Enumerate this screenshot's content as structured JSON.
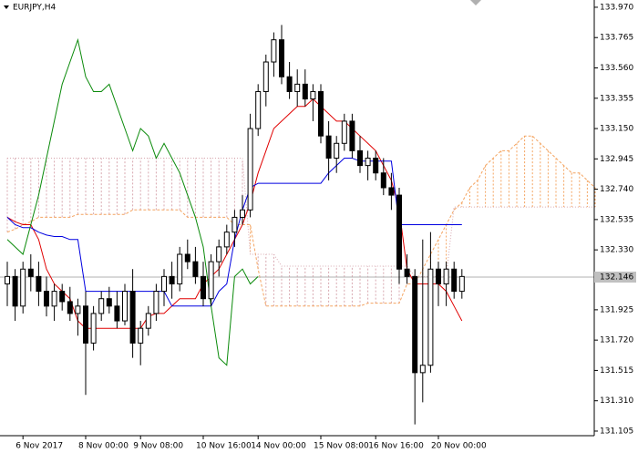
{
  "chart_data": {
    "type": "candlestick",
    "title": "EURJPY,H4",
    "categories": [
      null,
      null,
      "6 Nov 2017",
      null,
      null,
      null,
      null,
      null,
      null,
      null,
      "8 Nov 00:00",
      null,
      null,
      null,
      null,
      null,
      null,
      "9 Nov 08:00",
      null,
      null,
      null,
      null,
      null,
      null,
      null,
      "10 Nov 16:00",
      null,
      null,
      null,
      null,
      null,
      null,
      "14 Nov 00:00",
      null,
      null,
      null,
      null,
      null,
      null,
      null,
      "15 Nov 08:00",
      null,
      null,
      null,
      null,
      null,
      null,
      "16 Nov 16:00",
      null,
      null,
      null,
      null,
      null,
      null,
      null,
      "20 Nov 00:00",
      null,
      null,
      null,
      null,
      null,
      null,
      null,
      null,
      null,
      null,
      null,
      null,
      null,
      null,
      null,
      null,
      null,
      null,
      null,
      null
    ],
    "open": [
      132.1,
      132.15,
      131.95,
      132.2,
      132.15,
      132.05,
      131.95,
      132.05,
      131.98,
      131.9,
      131.95,
      131.7,
      131.9,
      132.0,
      131.95,
      131.85,
      132.05,
      131.7,
      131.8,
      131.9,
      132.05,
      132.15,
      132.1,
      132.3,
      132.25,
      132.15,
      132.0,
      132.25,
      132.35,
      132.45,
      132.55,
      132.6,
      133.15,
      133.4,
      133.6,
      133.75,
      133.5,
      133.4,
      133.45,
      133.35,
      133.4,
      133.1,
      132.95,
      133.05,
      133.2,
      133.0,
      132.9,
      132.95,
      132.85,
      132.75,
      132.7,
      132.2,
      132.15,
      131.5,
      131.55,
      132.2,
      132.1,
      132.2,
      132.05,
      null,
      null,
      null,
      null,
      null,
      null,
      null,
      null,
      null,
      null,
      null,
      null,
      null,
      null,
      null,
      null,
      null
    ],
    "high": [
      132.25,
      132.2,
      132.25,
      132.3,
      132.25,
      132.15,
      132.1,
      132.1,
      132.08,
      132.0,
      132.05,
      131.95,
      132.05,
      132.08,
      132.05,
      132.1,
      132.2,
      131.85,
      131.95,
      132.1,
      132.2,
      132.25,
      132.35,
      132.4,
      132.35,
      132.25,
      132.3,
      132.4,
      132.5,
      132.6,
      132.7,
      133.25,
      133.45,
      133.65,
      133.8,
      133.85,
      133.6,
      133.55,
      133.55,
      133.45,
      133.45,
      133.2,
      133.1,
      133.25,
      133.25,
      133.1,
      133.0,
      133.0,
      132.95,
      132.85,
      132.75,
      132.3,
      132.2,
      132.4,
      132.45,
      132.25,
      132.25,
      132.25,
      132.2,
      null,
      null,
      null,
      null,
      null,
      null,
      null,
      null,
      null,
      null,
      null,
      null,
      null,
      null,
      null,
      null,
      null
    ],
    "low": [
      131.95,
      131.85,
      131.9,
      132.05,
      131.95,
      131.88,
      131.85,
      131.92,
      131.85,
      131.75,
      131.35,
      131.65,
      131.85,
      131.9,
      131.8,
      131.82,
      131.6,
      131.55,
      131.75,
      131.85,
      131.95,
      132.0,
      132.05,
      132.2,
      132.1,
      131.95,
      131.95,
      132.15,
      132.3,
      132.35,
      132.5,
      132.55,
      133.1,
      133.3,
      133.5,
      133.45,
      133.35,
      133.3,
      133.3,
      133.2,
      133.05,
      132.8,
      132.85,
      133.0,
      132.95,
      132.85,
      132.8,
      132.8,
      132.7,
      132.6,
      132.1,
      132.1,
      131.15,
      131.3,
      131.5,
      131.95,
      131.95,
      132.0,
      132.0,
      null,
      null,
      null,
      null,
      null,
      null,
      null,
      null,
      null,
      null,
      null,
      null,
      null,
      null,
      null,
      null,
      null
    ],
    "close": [
      132.15,
      131.95,
      132.2,
      132.15,
      132.05,
      131.95,
      132.05,
      131.98,
      131.9,
      131.95,
      131.7,
      131.9,
      132.0,
      131.95,
      131.85,
      132.05,
      131.7,
      131.8,
      131.9,
      132.05,
      132.15,
      132.1,
      132.3,
      132.25,
      132.15,
      132.0,
      132.25,
      132.35,
      132.45,
      132.55,
      132.6,
      133.15,
      133.4,
      133.6,
      133.75,
      133.5,
      133.4,
      133.45,
      133.35,
      133.4,
      133.1,
      132.95,
      133.05,
      133.2,
      133.0,
      132.9,
      132.95,
      132.85,
      132.75,
      132.7,
      132.2,
      132.15,
      131.5,
      131.55,
      132.2,
      132.1,
      132.2,
      132.05,
      132.15,
      null,
      null,
      null,
      null,
      null,
      null,
      null,
      null,
      null,
      null,
      null,
      null,
      null,
      null,
      null,
      null,
      null
    ],
    "lines": [
      {
        "color": "#e00000",
        "values": [
          132.55,
          132.52,
          132.5,
          132.5,
          132.4,
          132.2,
          132.1,
          132.05,
          132.0,
          131.85,
          131.8,
          131.8,
          131.8,
          131.8,
          131.8,
          131.8,
          131.8,
          131.8,
          131.88,
          131.9,
          131.9,
          131.95,
          132.0,
          132.0,
          132.0,
          132.1,
          132.15,
          132.2,
          132.3,
          132.4,
          132.5,
          132.65,
          132.85,
          133.0,
          133.15,
          133.2,
          133.25,
          133.3,
          133.3,
          133.35,
          133.3,
          133.25,
          133.2,
          133.2,
          133.15,
          133.1,
          133.05,
          133.0,
          132.9,
          132.8,
          132.6,
          132.2,
          132.1,
          132.1,
          132.1,
          132.1,
          132.05,
          131.95,
          131.85,
          null,
          null,
          null,
          null,
          null,
          null,
          null,
          null,
          null,
          null,
          null,
          null,
          null,
          null,
          null,
          null,
          null
        ]
      },
      {
        "color": "#0000e0",
        "values": [
          132.55,
          132.5,
          132.48,
          132.48,
          132.45,
          132.43,
          132.42,
          132.42,
          132.4,
          132.4,
          132.05,
          132.05,
          132.05,
          132.05,
          132.05,
          132.05,
          132.05,
          132.05,
          132.05,
          132.05,
          132.05,
          131.95,
          131.95,
          131.95,
          131.95,
          131.95,
          131.95,
          132.05,
          132.1,
          132.4,
          132.6,
          132.75,
          132.78,
          132.78,
          132.78,
          132.78,
          132.78,
          132.78,
          132.78,
          132.78,
          132.78,
          132.85,
          132.9,
          132.95,
          132.95,
          132.93,
          132.93,
          132.93,
          132.93,
          132.93,
          132.5,
          132.5,
          132.5,
          132.5,
          132.5,
          132.5,
          132.5,
          132.5,
          132.5,
          null,
          null,
          null,
          null,
          null,
          null,
          null,
          null,
          null,
          null,
          null,
          null,
          null,
          null,
          null,
          null,
          null
        ]
      },
      {
        "color": "#0a8a0a",
        "values": [
          132.4,
          132.35,
          132.3,
          132.5,
          132.7,
          132.95,
          133.2,
          133.45,
          133.6,
          133.75,
          133.5,
          133.4,
          133.4,
          133.45,
          133.3,
          133.15,
          133.0,
          133.15,
          133.1,
          132.95,
          133.05,
          132.95,
          132.85,
          132.7,
          132.55,
          132.35,
          131.95,
          131.6,
          131.55,
          132.15,
          132.2,
          132.1,
          132.15,
          null,
          null,
          null,
          null,
          null,
          null,
          null,
          null,
          null,
          null,
          null,
          null,
          null,
          null,
          null,
          null,
          null,
          null,
          null,
          null,
          null,
          null,
          null,
          null,
          null,
          null,
          null,
          null,
          null,
          null,
          null,
          null,
          null,
          null,
          null,
          null,
          null,
          null,
          null,
          null,
          null,
          null,
          null
        ]
      }
    ],
    "cloud": {
      "span_a": {
        "color": "#f4a460",
        "values": [
          132.45,
          132.47,
          132.5,
          132.52,
          132.55,
          132.55,
          132.55,
          132.55,
          132.55,
          132.57,
          132.57,
          132.57,
          132.57,
          132.57,
          132.57,
          132.57,
          132.6,
          132.6,
          132.6,
          132.6,
          132.6,
          132.6,
          132.6,
          132.55,
          132.55,
          132.55,
          132.55,
          132.55,
          132.55,
          132.5,
          132.5,
          132.5,
          132.2,
          131.95,
          131.95,
          131.95,
          131.95,
          131.95,
          131.95,
          131.95,
          131.95,
          131.95,
          131.95,
          131.95,
          131.95,
          131.95,
          131.97,
          131.97,
          131.97,
          131.97,
          131.97,
          132.1,
          132.1,
          132.2,
          132.3,
          132.4,
          132.5,
          132.6,
          132.65,
          132.75,
          132.8,
          132.9,
          132.95,
          133.0,
          133.0,
          133.05,
          133.1,
          133.1,
          133.05,
          133.0,
          132.95,
          132.9,
          132.85,
          132.85,
          132.8,
          132.75
        ]
      },
      "span_b": {
        "color": "#d8a8b0",
        "values": [
          132.95,
          132.95,
          132.95,
          132.95,
          132.95,
          132.95,
          132.95,
          132.95,
          132.95,
          132.95,
          132.95,
          132.95,
          132.95,
          132.95,
          132.95,
          132.95,
          132.95,
          132.95,
          132.95,
          132.95,
          132.95,
          132.95,
          132.95,
          132.95,
          132.95,
          132.95,
          132.95,
          132.95,
          132.95,
          132.95,
          132.95,
          132.3,
          132.3,
          132.3,
          132.3,
          132.22,
          132.22,
          132.22,
          132.22,
          132.22,
          132.22,
          132.22,
          132.22,
          132.22,
          132.22,
          132.22,
          132.22,
          132.22,
          132.22,
          132.22,
          132.22,
          132.22,
          132.15,
          132.15,
          132.15,
          132.15,
          132.15,
          132.62,
          132.62,
          132.62,
          132.62,
          132.62,
          132.62,
          132.62,
          132.62,
          132.62,
          132.62,
          132.62,
          132.62,
          132.62,
          132.62,
          132.62,
          132.62,
          132.62,
          132.62,
          132.62
        ]
      }
    },
    "current_price": {
      "value": 132.146,
      "label": "132.146"
    },
    "ylim": [
      131.074,
      134.019
    ],
    "yticks": [
      {
        "value": 133.97,
        "label": "133.970"
      },
      {
        "value": 133.765,
        "label": "133.765"
      },
      {
        "value": 133.56,
        "label": "133.560"
      },
      {
        "value": 133.355,
        "label": "133.355"
      },
      {
        "value": 133.15,
        "label": "133.150"
      },
      {
        "value": 132.945,
        "label": "132.945"
      },
      {
        "value": 132.74,
        "label": "132.740"
      },
      {
        "value": 132.535,
        "label": "132.535"
      },
      {
        "value": 132.33,
        "label": "132.330"
      },
      {
        "value": 131.925,
        "label": "131.925"
      },
      {
        "value": 131.72,
        "label": "131.720"
      },
      {
        "value": 131.515,
        "label": "131.515"
      },
      {
        "value": 131.31,
        "label": "131.310"
      },
      {
        "value": 131.105,
        "label": "131.105"
      }
    ]
  }
}
